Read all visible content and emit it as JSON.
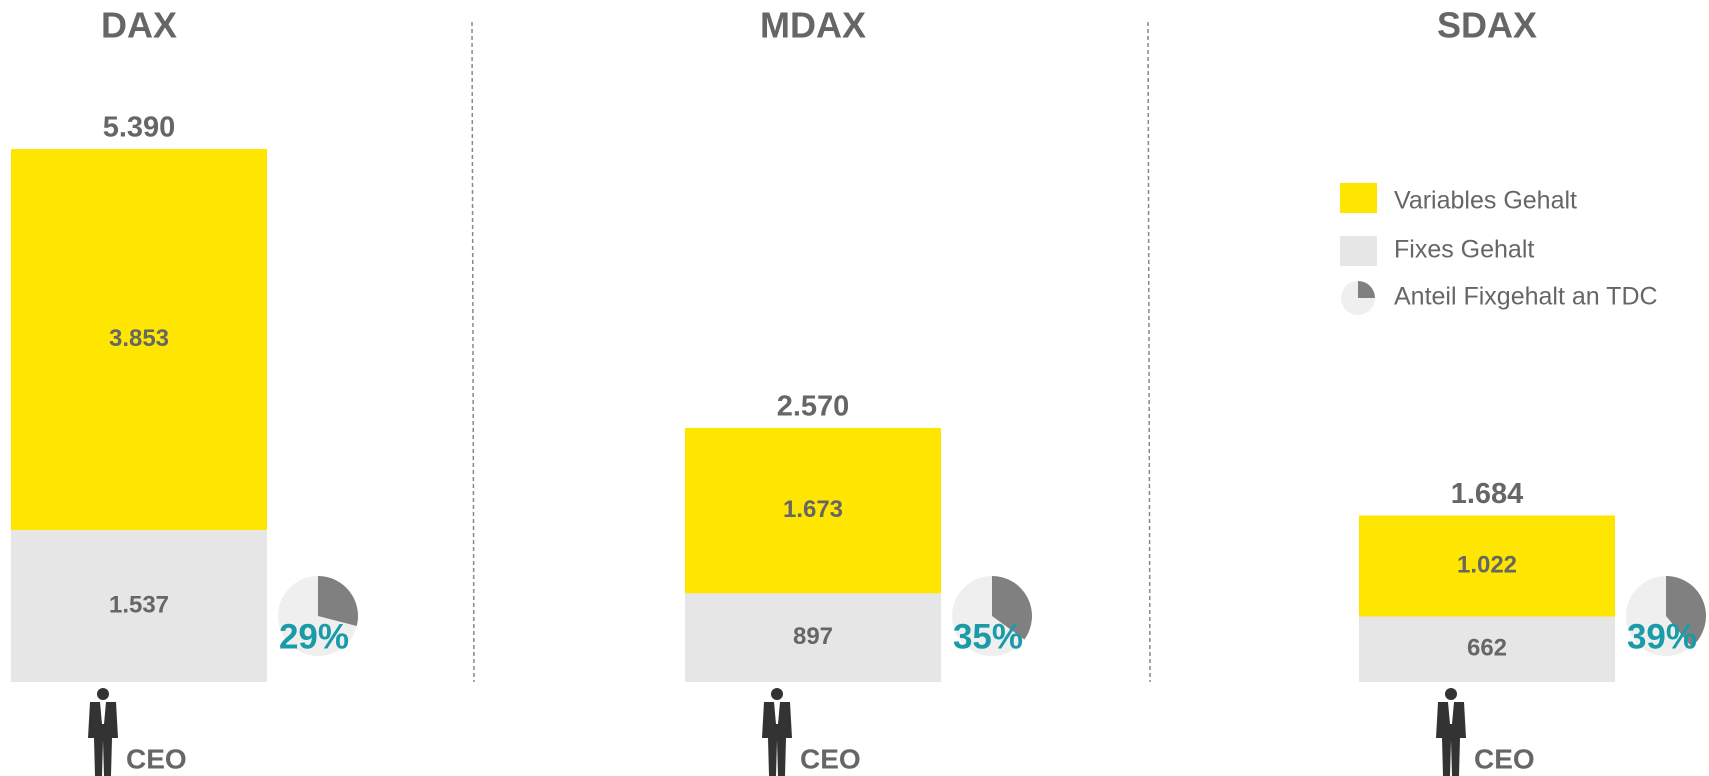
{
  "chart_data": {
    "type": "bar",
    "stacked": true,
    "categories": [
      "DAX",
      "MDAX",
      "SDAX"
    ],
    "series": [
      {
        "name": "Fixes Gehalt",
        "color": "#e6e6e6",
        "values": [
          1537,
          897,
          662
        ],
        "value_labels": [
          "1.537",
          "897",
          "662"
        ]
      },
      {
        "name": "Variables Gehalt",
        "color": "#ffe600",
        "values": [
          3853,
          1673,
          1022
        ],
        "value_labels": [
          "3.853",
          "1.673",
          "1.022"
        ]
      }
    ],
    "totals": {
      "values": [
        5390,
        2570,
        1684
      ],
      "value_labels": [
        "5.390",
        "2.570",
        "1.684"
      ]
    },
    "fixed_share": {
      "name": "Anteil Fixgehalt an TDC",
      "color": "#808080",
      "values": [
        29,
        35,
        39
      ],
      "value_labels": [
        "29%",
        "35%",
        "39%"
      ]
    },
    "sublabels": [
      "CEO",
      "CEO",
      "CEO"
    ]
  }
}
